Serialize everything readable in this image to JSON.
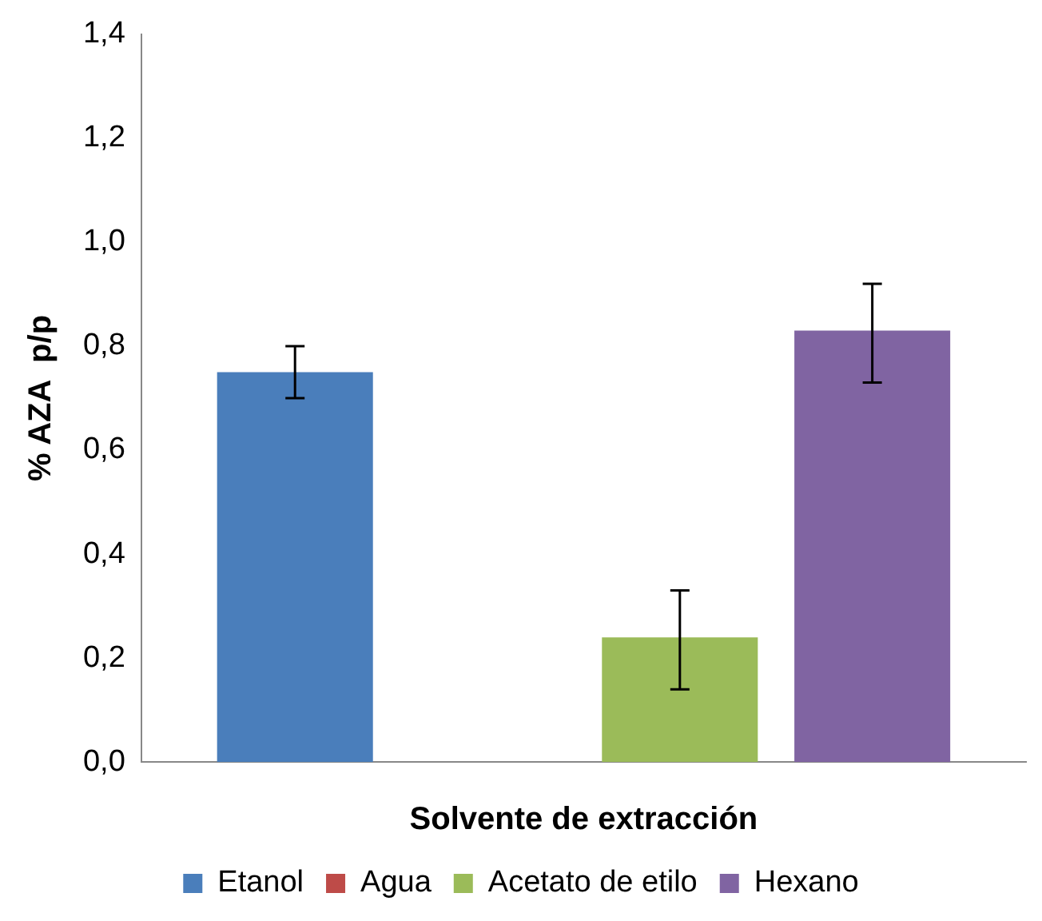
{
  "chart_data": {
    "type": "bar",
    "xlabel": "Solvente de extracción",
    "ylabel": "% AZA  p/p",
    "categories": [
      null
    ],
    "series": [
      {
        "name": "Etanol",
        "color": "#4a7ebb",
        "values": [
          0.75
        ],
        "errors": [
          [
            0.7,
            0.8
          ]
        ]
      },
      {
        "name": "Agua",
        "color": "#be4b48",
        "values": [
          null
        ],
        "errors": [
          null
        ]
      },
      {
        "name": "Acetato de etilo",
        "color": "#9bbb59",
        "values": [
          0.24
        ],
        "errors": [
          [
            0.14,
            0.33
          ]
        ]
      },
      {
        "name": "Hexano",
        "color": "#8064a2",
        "values": [
          0.83
        ],
        "errors": [
          [
            0.73,
            0.92
          ]
        ]
      }
    ],
    "ylim": [
      0,
      1.4
    ],
    "yticks": [
      {
        "value": 0,
        "label": "0,0"
      },
      {
        "value": 0.2,
        "label": "0,2"
      },
      {
        "value": 0.4,
        "label": "0,4"
      },
      {
        "value": 0.6,
        "label": "0,6"
      },
      {
        "value": 0.8,
        "label": "0,8"
      },
      {
        "value": 1.0,
        "label": "1,0"
      },
      {
        "value": 1.2,
        "label": "1,2"
      },
      {
        "value": 1.4,
        "label": "1,4"
      }
    ],
    "grid": false,
    "legend": "bottom"
  }
}
